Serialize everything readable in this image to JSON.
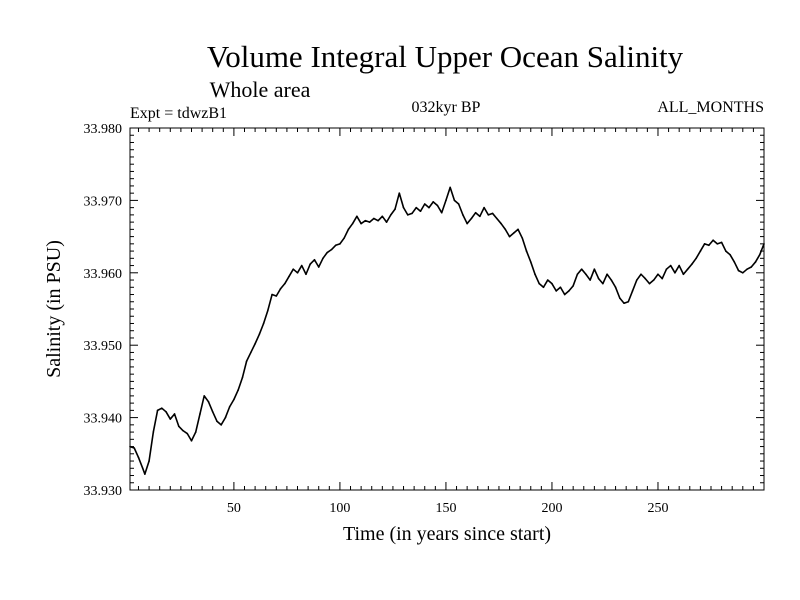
{
  "chart_data": {
    "type": "line",
    "title": "Volume Integral Upper Ocean Salinity",
    "subtitle": "Whole area",
    "annotations": {
      "experiment": "Expt = tdwzB1",
      "period": "032kyr BP",
      "months": "ALL_MONTHS"
    },
    "xlabel": "Time (in years since start)",
    "ylabel": "Salinity (in PSU)",
    "xlim": [
      1,
      300
    ],
    "ylim": [
      33.93,
      33.98
    ],
    "x_ticks": [
      50,
      100,
      150,
      200,
      250
    ],
    "y_ticks": [
      "33.930",
      "33.940",
      "33.950",
      "33.960",
      "33.970",
      "33.980"
    ],
    "grid": false,
    "series": [
      {
        "name": "Salinity",
        "color": "#000000",
        "points": [
          [
            1,
            33.936
          ],
          [
            3,
            33.9358
          ],
          [
            5,
            33.9345
          ],
          [
            7,
            33.933
          ],
          [
            8,
            33.9322
          ],
          [
            10,
            33.934
          ],
          [
            12,
            33.938
          ],
          [
            14,
            33.941
          ],
          [
            16,
            33.9413
          ],
          [
            18,
            33.9408
          ],
          [
            20,
            33.9398
          ],
          [
            22,
            33.9405
          ],
          [
            24,
            33.9388
          ],
          [
            26,
            33.9382
          ],
          [
            28,
            33.9378
          ],
          [
            30,
            33.9368
          ],
          [
            32,
            33.938
          ],
          [
            34,
            33.9405
          ],
          [
            36,
            33.943
          ],
          [
            38,
            33.9422
          ],
          [
            40,
            33.9408
          ],
          [
            42,
            33.9395
          ],
          [
            44,
            33.939
          ],
          [
            46,
            33.94
          ],
          [
            48,
            33.9415
          ],
          [
            50,
            33.9425
          ],
          [
            52,
            33.9438
          ],
          [
            54,
            33.9455
          ],
          [
            56,
            33.9478
          ],
          [
            58,
            33.949
          ],
          [
            60,
            33.9502
          ],
          [
            62,
            33.9515
          ],
          [
            64,
            33.953
          ],
          [
            66,
            33.9548
          ],
          [
            68,
            33.957
          ],
          [
            70,
            33.9568
          ],
          [
            72,
            33.9578
          ],
          [
            74,
            33.9585
          ],
          [
            76,
            33.9595
          ],
          [
            78,
            33.9605
          ],
          [
            80,
            33.96
          ],
          [
            82,
            33.961
          ],
          [
            84,
            33.9598
          ],
          [
            86,
            33.9612
          ],
          [
            88,
            33.9618
          ],
          [
            90,
            33.9608
          ],
          [
            92,
            33.962
          ],
          [
            94,
            33.9628
          ],
          [
            96,
            33.9632
          ],
          [
            98,
            33.9638
          ],
          [
            100,
            33.964
          ],
          [
            102,
            33.9648
          ],
          [
            104,
            33.966
          ],
          [
            106,
            33.9668
          ],
          [
            108,
            33.9678
          ],
          [
            110,
            33.9668
          ],
          [
            112,
            33.9672
          ],
          [
            114,
            33.967
          ],
          [
            116,
            33.9675
          ],
          [
            118,
            33.9672
          ],
          [
            120,
            33.9678
          ],
          [
            122,
            33.967
          ],
          [
            124,
            33.968
          ],
          [
            126,
            33.9688
          ],
          [
            128,
            33.971
          ],
          [
            130,
            33.969
          ],
          [
            132,
            33.968
          ],
          [
            134,
            33.9682
          ],
          [
            136,
            33.969
          ],
          [
            138,
            33.9685
          ],
          [
            140,
            33.9695
          ],
          [
            142,
            33.969
          ],
          [
            144,
            33.9698
          ],
          [
            146,
            33.9693
          ],
          [
            148,
            33.9683
          ],
          [
            150,
            33.97
          ],
          [
            152,
            33.9718
          ],
          [
            154,
            33.97
          ],
          [
            156,
            33.9695
          ],
          [
            158,
            33.968
          ],
          [
            160,
            33.9668
          ],
          [
            162,
            33.9675
          ],
          [
            164,
            33.9683
          ],
          [
            166,
            33.9678
          ],
          [
            168,
            33.969
          ],
          [
            170,
            33.968
          ],
          [
            172,
            33.9682
          ],
          [
            174,
            33.9675
          ],
          [
            176,
            33.9668
          ],
          [
            178,
            33.966
          ],
          [
            180,
            33.965
          ],
          [
            182,
            33.9655
          ],
          [
            184,
            33.966
          ],
          [
            186,
            33.9648
          ],
          [
            188,
            33.963
          ],
          [
            190,
            33.9615
          ],
          [
            192,
            33.9598
          ],
          [
            194,
            33.9585
          ],
          [
            196,
            33.958
          ],
          [
            198,
            33.959
          ],
          [
            200,
            33.9585
          ],
          [
            202,
            33.9575
          ],
          [
            204,
            33.958
          ],
          [
            206,
            33.957
          ],
          [
            208,
            33.9575
          ],
          [
            210,
            33.9582
          ],
          [
            212,
            33.9598
          ],
          [
            214,
            33.9605
          ],
          [
            216,
            33.9598
          ],
          [
            218,
            33.959
          ],
          [
            220,
            33.9605
          ],
          [
            222,
            33.9592
          ],
          [
            224,
            33.9585
          ],
          [
            226,
            33.9598
          ],
          [
            228,
            33.959
          ],
          [
            230,
            33.958
          ],
          [
            232,
            33.9565
          ],
          [
            234,
            33.9558
          ],
          [
            236,
            33.956
          ],
          [
            238,
            33.9575
          ],
          [
            240,
            33.959
          ],
          [
            242,
            33.9598
          ],
          [
            244,
            33.9592
          ],
          [
            246,
            33.9585
          ],
          [
            248,
            33.959
          ],
          [
            250,
            33.9598
          ],
          [
            252,
            33.9592
          ],
          [
            254,
            33.9605
          ],
          [
            256,
            33.961
          ],
          [
            258,
            33.96
          ],
          [
            260,
            33.961
          ],
          [
            262,
            33.9598
          ],
          [
            264,
            33.9605
          ],
          [
            266,
            33.9612
          ],
          [
            268,
            33.962
          ],
          [
            270,
            33.963
          ],
          [
            272,
            33.964
          ],
          [
            274,
            33.9638
          ],
          [
            276,
            33.9645
          ],
          [
            278,
            33.964
          ],
          [
            280,
            33.9642
          ],
          [
            282,
            33.963
          ],
          [
            284,
            33.9625
          ],
          [
            286,
            33.9615
          ],
          [
            288,
            33.9603
          ],
          [
            290,
            33.96
          ],
          [
            292,
            33.9605
          ],
          [
            294,
            33.9608
          ],
          [
            296,
            33.9615
          ],
          [
            298,
            33.9625
          ],
          [
            300,
            33.964
          ]
        ]
      }
    ]
  }
}
